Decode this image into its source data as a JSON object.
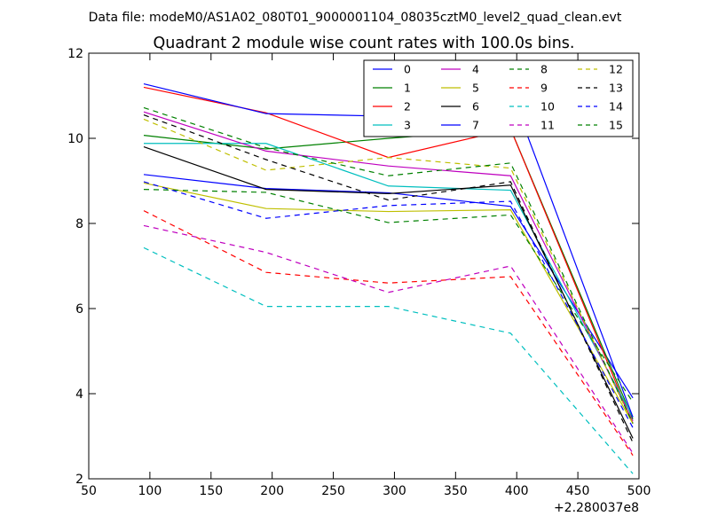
{
  "chart_data": {
    "type": "line",
    "suptitle": "Data file: modeM0/AS1A02_080T01_9000001104_08035cztM0_level2_quad_clean.evt",
    "title": "Quadrant 2 module wise count rates with 100.0s bins.",
    "xlabel": "",
    "ylabel": "",
    "x_offset_label": "+2.280037e8",
    "xlim": [
      50,
      500
    ],
    "ylim": [
      2,
      12
    ],
    "x_ticks": [
      "50",
      "100",
      "150",
      "200",
      "250",
      "300",
      "350",
      "400",
      "450",
      "500"
    ],
    "y_ticks": [
      "2",
      "4",
      "6",
      "8",
      "10",
      "12"
    ],
    "x": [
      95,
      195,
      295,
      395,
      495
    ],
    "legend_position": "top-right",
    "series": [
      {
        "name": "0",
        "color": "#0000ff",
        "style": "solid",
        "values": [
          9.15,
          8.82,
          8.72,
          8.4,
          3.9
        ]
      },
      {
        "name": "1",
        "color": "#008000",
        "style": "solid",
        "values": [
          10.07,
          9.75,
          10.0,
          10.22,
          3.4
        ]
      },
      {
        "name": "2",
        "color": "#ff0000",
        "style": "solid",
        "values": [
          11.2,
          10.6,
          9.55,
          10.22,
          3.3
        ]
      },
      {
        "name": "3",
        "color": "#00bfbf",
        "style": "solid",
        "values": [
          9.88,
          9.88,
          8.88,
          8.78,
          3.45
        ]
      },
      {
        "name": "4",
        "color": "#bf00bf",
        "style": "solid",
        "values": [
          10.62,
          9.7,
          9.35,
          9.12,
          3.35
        ]
      },
      {
        "name": "5",
        "color": "#bfbf00",
        "style": "solid",
        "values": [
          8.95,
          8.35,
          8.28,
          8.32,
          3.3
        ]
      },
      {
        "name": "6",
        "color": "#000000",
        "style": "solid",
        "values": [
          9.8,
          8.8,
          8.7,
          8.9,
          2.95
        ]
      },
      {
        "name": "7",
        "color": "#0000ff",
        "style": "solid",
        "values": [
          11.28,
          10.58,
          10.52,
          11.12,
          3.45
        ]
      },
      {
        "name": "8",
        "color": "#008000",
        "style": "dashed",
        "values": [
          8.8,
          8.73,
          8.02,
          8.2,
          3.8
        ]
      },
      {
        "name": "9",
        "color": "#ff0000",
        "style": "dashed",
        "values": [
          8.3,
          6.85,
          6.6,
          6.75,
          2.55
        ]
      },
      {
        "name": "10",
        "color": "#00bfbf",
        "style": "dashed",
        "values": [
          7.43,
          6.05,
          6.05,
          5.42,
          2.12
        ]
      },
      {
        "name": "11",
        "color": "#bf00bf",
        "style": "dashed",
        "values": [
          7.95,
          7.32,
          6.38,
          7.0,
          2.6
        ]
      },
      {
        "name": "12",
        "color": "#bfbf00",
        "style": "dashed",
        "values": [
          10.45,
          9.25,
          9.55,
          9.3,
          3.3
        ]
      },
      {
        "name": "13",
        "color": "#000000",
        "style": "dashed",
        "values": [
          10.55,
          9.5,
          8.55,
          8.98,
          2.85
        ]
      },
      {
        "name": "14",
        "color": "#0000ff",
        "style": "dashed",
        "values": [
          8.98,
          8.12,
          8.42,
          8.52,
          3.2
        ]
      },
      {
        "name": "15",
        "color": "#008000",
        "style": "dashed",
        "values": [
          10.72,
          9.78,
          9.12,
          9.42,
          3.3
        ]
      }
    ]
  }
}
